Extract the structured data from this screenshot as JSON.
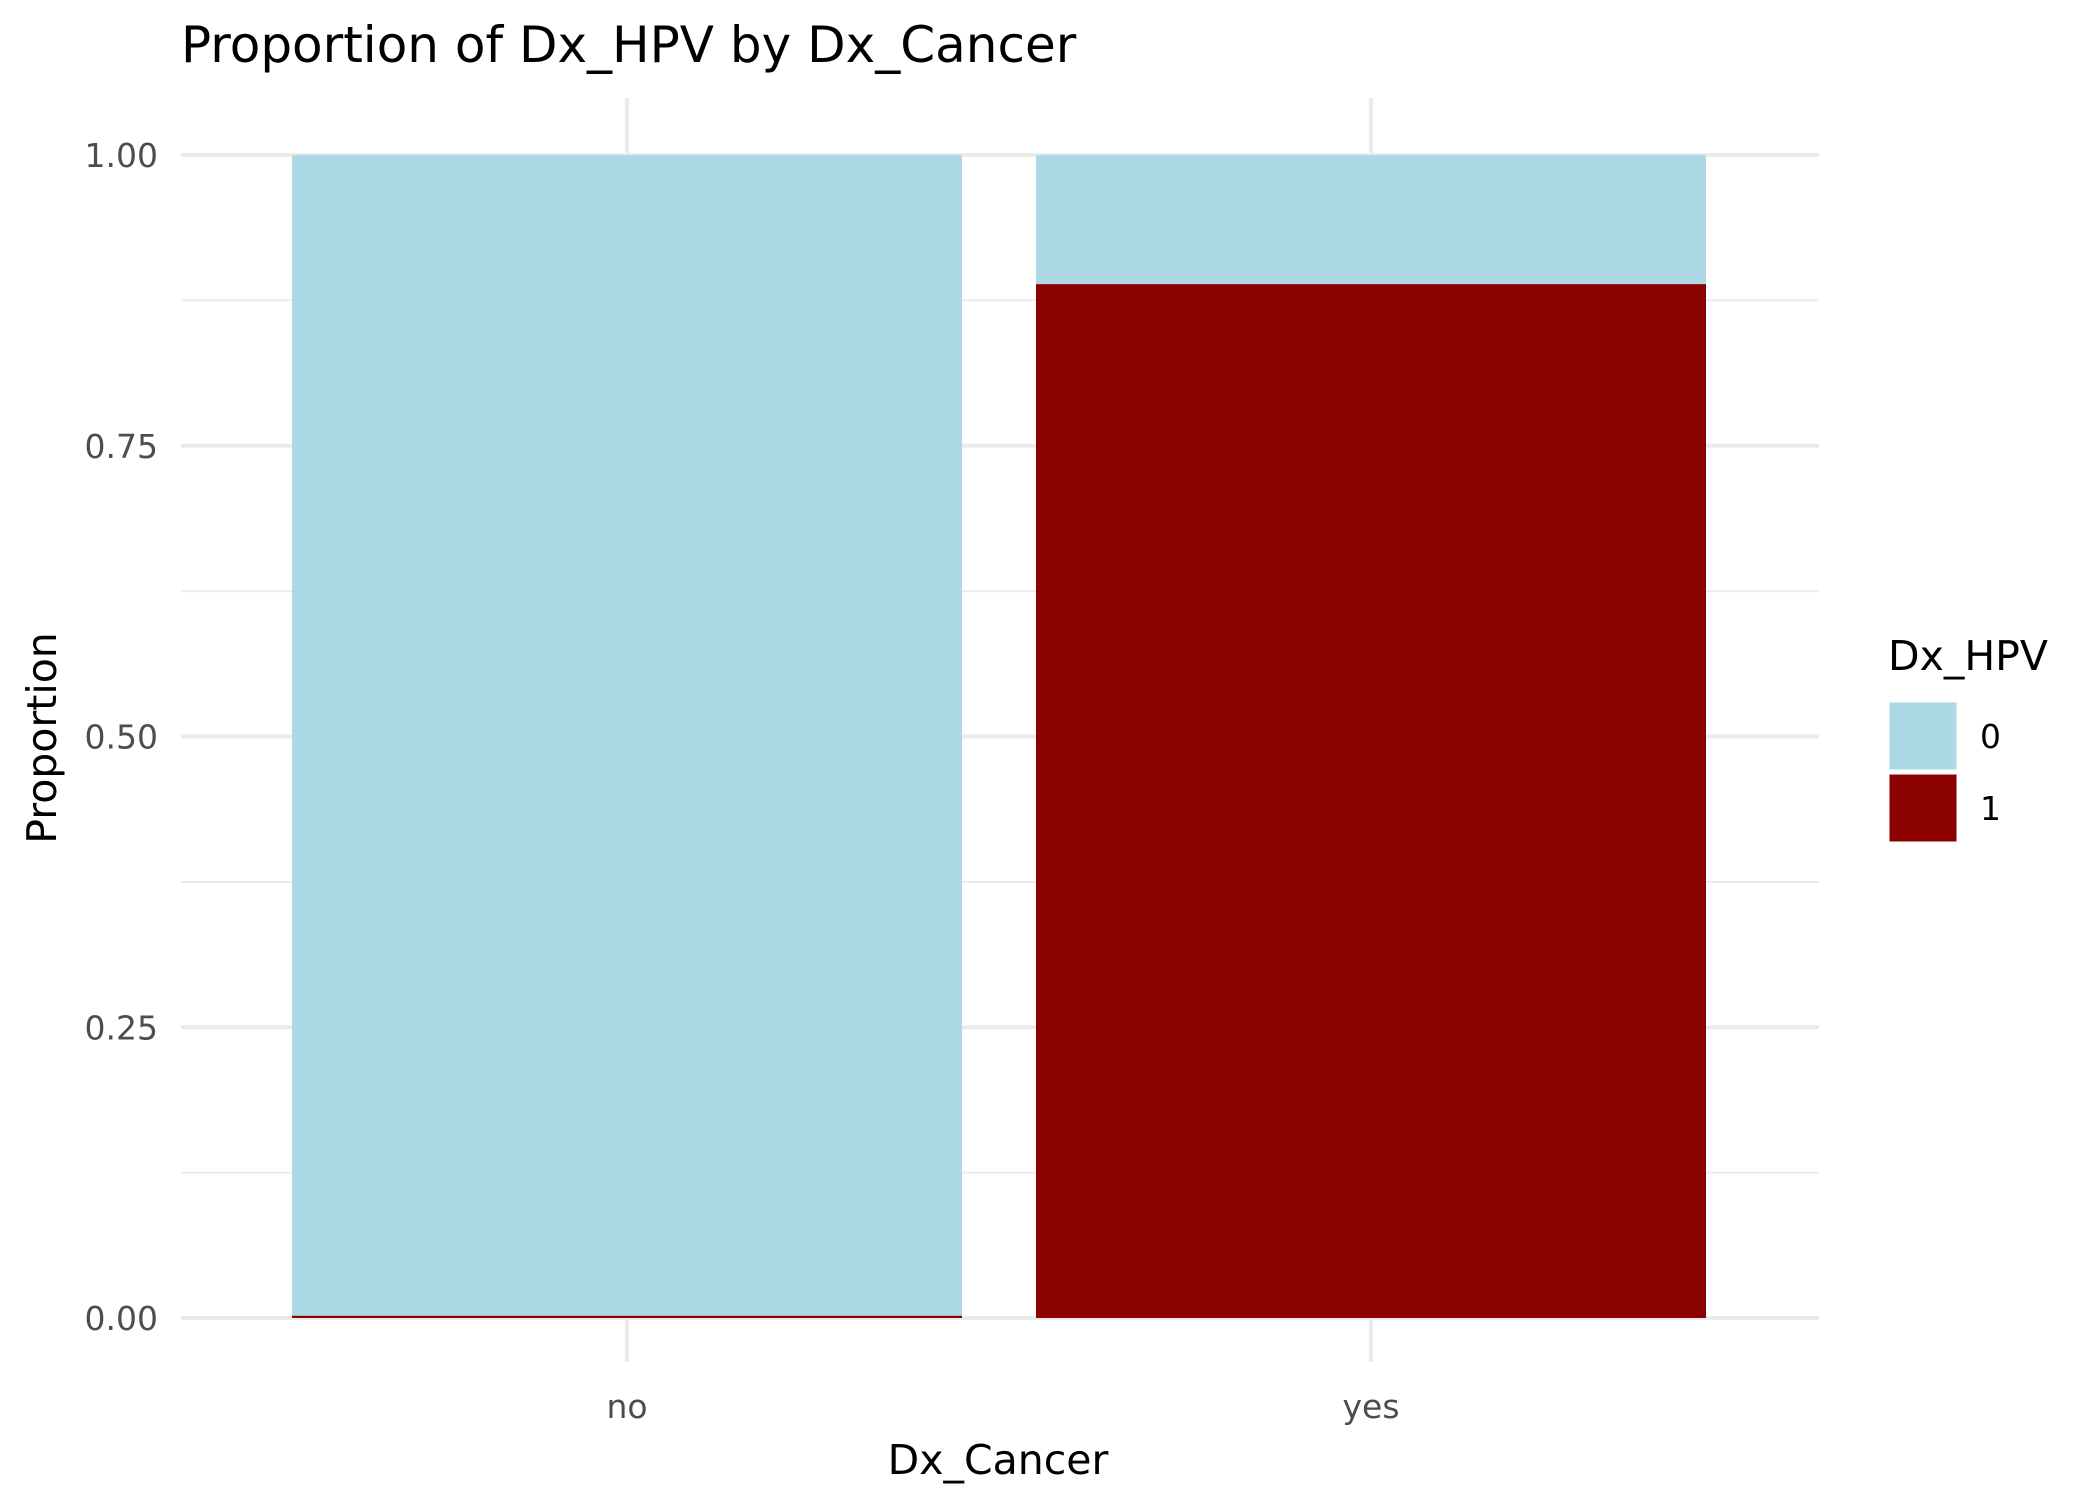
{
  "chart_data": {
    "type": "bar",
    "stacked": true,
    "title": "Proportion of Dx_HPV by Dx_Cancer",
    "xlabel": "Dx_Cancer",
    "ylabel": "Proportion",
    "categories": [
      "no",
      "yes"
    ],
    "series": [
      {
        "name": "0",
        "color": "#add8e6",
        "values": [
          0.998,
          0.111
        ]
      },
      {
        "name": "1",
        "color": "#8b0000",
        "values": [
          0.002,
          0.889
        ]
      }
    ],
    "ylim": [
      0,
      1
    ],
    "yticks": [
      0,
      0.25,
      0.5,
      0.75,
      1
    ],
    "ytick_labels": [
      "0.00",
      "0.25",
      "0.50",
      "0.75",
      "1.00"
    ],
    "legend": {
      "title": "Dx_HPV",
      "position": "right",
      "entries": [
        "0",
        "1"
      ]
    },
    "grid": true,
    "background": "#ffffff"
  }
}
